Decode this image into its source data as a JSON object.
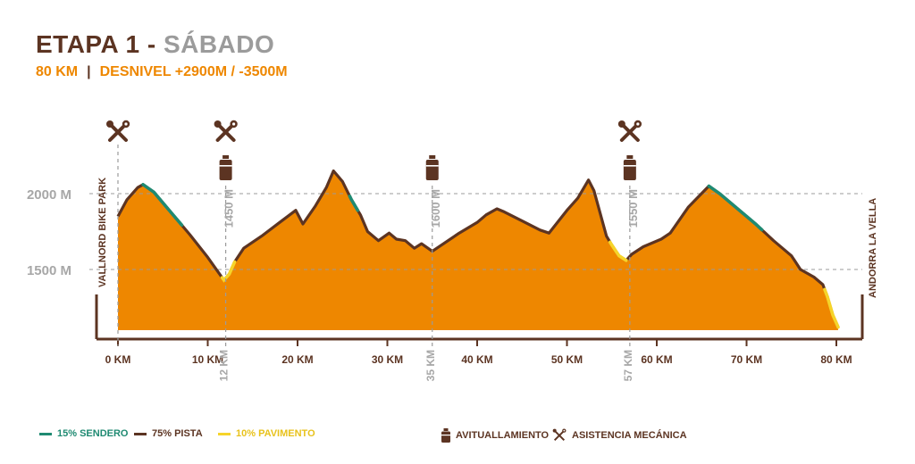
{
  "header": {
    "title_a": "ETAPA 1 - ",
    "title_b": "SÁBADO",
    "distance": "80 KM",
    "separator": "|",
    "elevation": "DESNIVEL +2900M / -3500M"
  },
  "colors": {
    "fill": "#ee8700",
    "pista": "#5c3422",
    "sendero": "#1f8a72",
    "pavimento": "#f6d42a",
    "dash": "#9b9b9b",
    "label_gray": "#a7a7a7"
  },
  "chart_data": {
    "type": "area",
    "title": "",
    "xlabel": "",
    "ylabel": "",
    "xlim": [
      0,
      80
    ],
    "ylim": [
      1100,
      2300
    ],
    "y_ticks": [
      {
        "label": "2000 M",
        "value": 2000
      },
      {
        "label": "1500 M",
        "value": 1500
      }
    ],
    "x_ticks": [
      {
        "label": "0 KM",
        "value": 0
      },
      {
        "label": "10 KM",
        "value": 10
      },
      {
        "label": "20 KM",
        "value": 20
      },
      {
        "label": "30 KM",
        "value": 30
      },
      {
        "label": "40 KM",
        "value": 40
      },
      {
        "label": "50 KM",
        "value": 50
      },
      {
        "label": "60 KM",
        "value": 60
      },
      {
        "label": "70 KM",
        "value": 70
      },
      {
        "label": "80 KM",
        "value": 80
      }
    ],
    "profile": [
      [
        0,
        1850
      ],
      [
        1,
        1960
      ],
      [
        2.2,
        2040
      ],
      [
        2.8,
        2060
      ],
      [
        4,
        2010
      ],
      [
        6,
        1870
      ],
      [
        8,
        1730
      ],
      [
        10,
        1580
      ],
      [
        11.8,
        1430
      ],
      [
        12.4,
        1470
      ],
      [
        13,
        1550
      ],
      [
        14,
        1640
      ],
      [
        16,
        1720
      ],
      [
        18,
        1810
      ],
      [
        19.8,
        1890
      ],
      [
        20.6,
        1800
      ],
      [
        22,
        1920
      ],
      [
        23.2,
        2040
      ],
      [
        24,
        2150
      ],
      [
        25,
        2080
      ],
      [
        26,
        1960
      ],
      [
        27,
        1860
      ],
      [
        27.8,
        1750
      ],
      [
        29,
        1690
      ],
      [
        30.2,
        1740
      ],
      [
        31,
        1700
      ],
      [
        32,
        1690
      ],
      [
        33,
        1640
      ],
      [
        33.8,
        1670
      ],
      [
        35,
        1620
      ],
      [
        36,
        1660
      ],
      [
        38,
        1740
      ],
      [
        40,
        1810
      ],
      [
        41,
        1860
      ],
      [
        42.2,
        1900
      ],
      [
        43,
        1880
      ],
      [
        45,
        1820
      ],
      [
        47,
        1760
      ],
      [
        48,
        1740
      ],
      [
        50,
        1890
      ],
      [
        51.2,
        1970
      ],
      [
        52.4,
        2090
      ],
      [
        53,
        2020
      ],
      [
        54.4,
        1720
      ],
      [
        55,
        1660
      ],
      [
        55.8,
        1590
      ],
      [
        56.6,
        1560
      ],
      [
        57.2,
        1600
      ],
      [
        58.5,
        1650
      ],
      [
        60.5,
        1700
      ],
      [
        61.5,
        1740
      ],
      [
        63.5,
        1910
      ],
      [
        65.8,
        2050
      ],
      [
        67,
        2000
      ],
      [
        69,
        1900
      ],
      [
        71,
        1800
      ],
      [
        73,
        1690
      ],
      [
        75,
        1590
      ],
      [
        76,
        1500
      ],
      [
        77.5,
        1450
      ],
      [
        78.5,
        1400
      ],
      [
        79,
        1320
      ],
      [
        79.6,
        1200
      ],
      [
        80.2,
        1120
      ]
    ],
    "surface_segments": [
      {
        "type": "sendero",
        "from": 2.8,
        "to": 7.1
      },
      {
        "type": "pavimento",
        "from": 11.6,
        "to": 13.0
      },
      {
        "type": "sendero",
        "from": 25.8,
        "to": 26.7
      },
      {
        "type": "pavimento",
        "from": 54.8,
        "to": 56.6
      },
      {
        "type": "sendero",
        "from": 65.8,
        "to": 71.7
      },
      {
        "type": "pavimento",
        "from": 78.7,
        "to": 80.2
      }
    ],
    "markers": [
      {
        "km": 0,
        "icons": [
          "tools"
        ],
        "vlabel": "",
        "km_label": ""
      },
      {
        "km": 12,
        "icons": [
          "tools",
          "bottle"
        ],
        "vlabel": "1450 M",
        "km_label": "12 KM"
      },
      {
        "km": 35,
        "icons": [
          "bottle"
        ],
        "vlabel": "1600 M",
        "km_label": "35 KM"
      },
      {
        "km": 57,
        "icons": [
          "tools",
          "bottle"
        ],
        "vlabel": "1550 M",
        "km_label": "57 KM"
      }
    ],
    "start_label": "VALLNORD BIKE PARK",
    "end_label": "ANDORRA LA VELLA"
  },
  "legend": {
    "sendero": "15% SENDERO",
    "pista": "75%  PISTA",
    "pavimento": "10% PAVIMENTO",
    "avituallamiento": "AVITUALLAMIENTO",
    "asistencia": "ASISTENCIA MECÁNICA"
  }
}
